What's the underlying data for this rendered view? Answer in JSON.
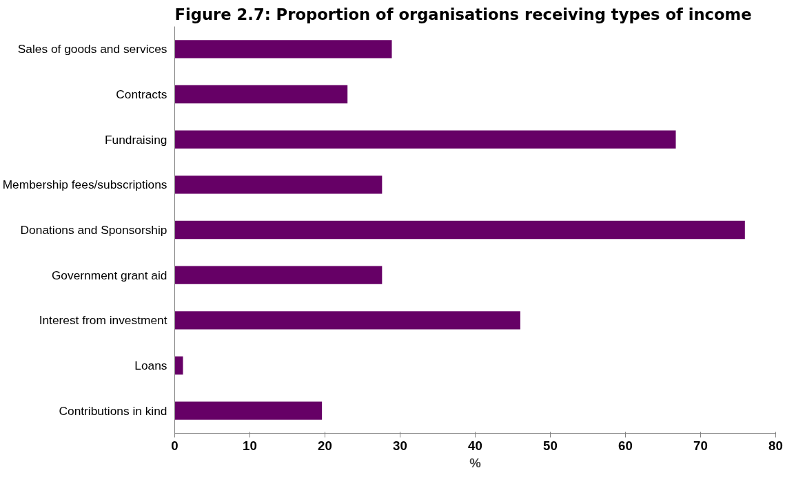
{
  "chart_data": {
    "type": "bar",
    "orientation": "horizontal",
    "title": "Figure 2.7: Proportion of organisations receiving types of income",
    "xlabel": "%",
    "categories": [
      "Sales of goods and services",
      "Contracts",
      "Fundraising",
      "Membership fees/subscriptions",
      "Donations and Sponsorship",
      "Government grant aid",
      "Interest from investment",
      "Loans",
      "Contributions in kind"
    ],
    "values": [
      28.9,
      23.0,
      66.7,
      27.6,
      75.9,
      27.6,
      46.0,
      1.1,
      19.6
    ],
    "color": "#660066",
    "xlim": [
      0,
      80
    ],
    "xticks": [
      0,
      10,
      20,
      30,
      40,
      50,
      60,
      70,
      80
    ],
    "grid": false
  }
}
